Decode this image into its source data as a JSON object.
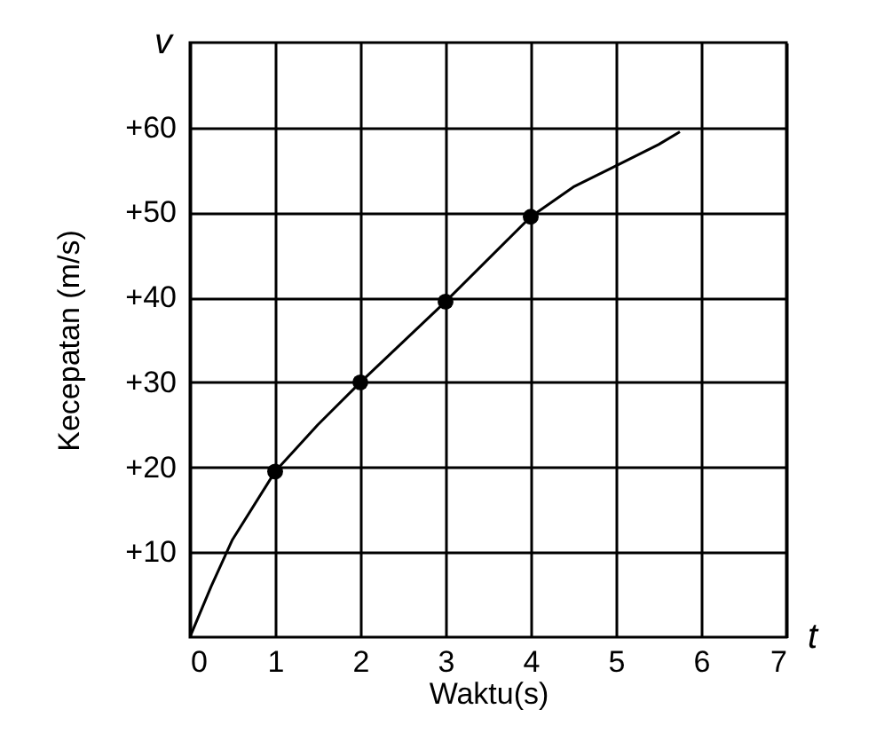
{
  "chart_data": {
    "type": "line",
    "xlabel": "Waktu(s)",
    "ylabel": "Kecepatan (m/s)",
    "annotations": [
      "v",
      "t"
    ],
    "xlim": [
      0,
      7
    ],
    "ylim": [
      0,
      70
    ],
    "xticks": [
      0,
      1,
      2,
      3,
      4,
      5,
      6,
      7
    ],
    "yticks": [
      {
        "value": 10,
        "label": "+10"
      },
      {
        "value": 20,
        "label": "+20"
      },
      {
        "value": 30,
        "label": "+30"
      },
      {
        "value": 40,
        "label": "+40"
      },
      {
        "value": 50,
        "label": "+50"
      },
      {
        "value": 60,
        "label": "+60"
      }
    ],
    "grid": true,
    "series": [
      {
        "color": "#000000",
        "marker": "none",
        "x": [
          0,
          0.25,
          0.5,
          1,
          1.5,
          2,
          3,
          4,
          4.5,
          5,
          5.5,
          5.75
        ],
        "values": [
          0,
          6,
          11.5,
          19.5,
          25,
          30,
          39.5,
          49.5,
          53,
          55.5,
          58,
          59.5
        ]
      },
      {
        "type": "scatter",
        "color": "#000000",
        "marker": "circle",
        "x": [
          1,
          2,
          3,
          4
        ],
        "values": [
          19.5,
          30,
          39.5,
          49.5
        ]
      }
    ]
  }
}
